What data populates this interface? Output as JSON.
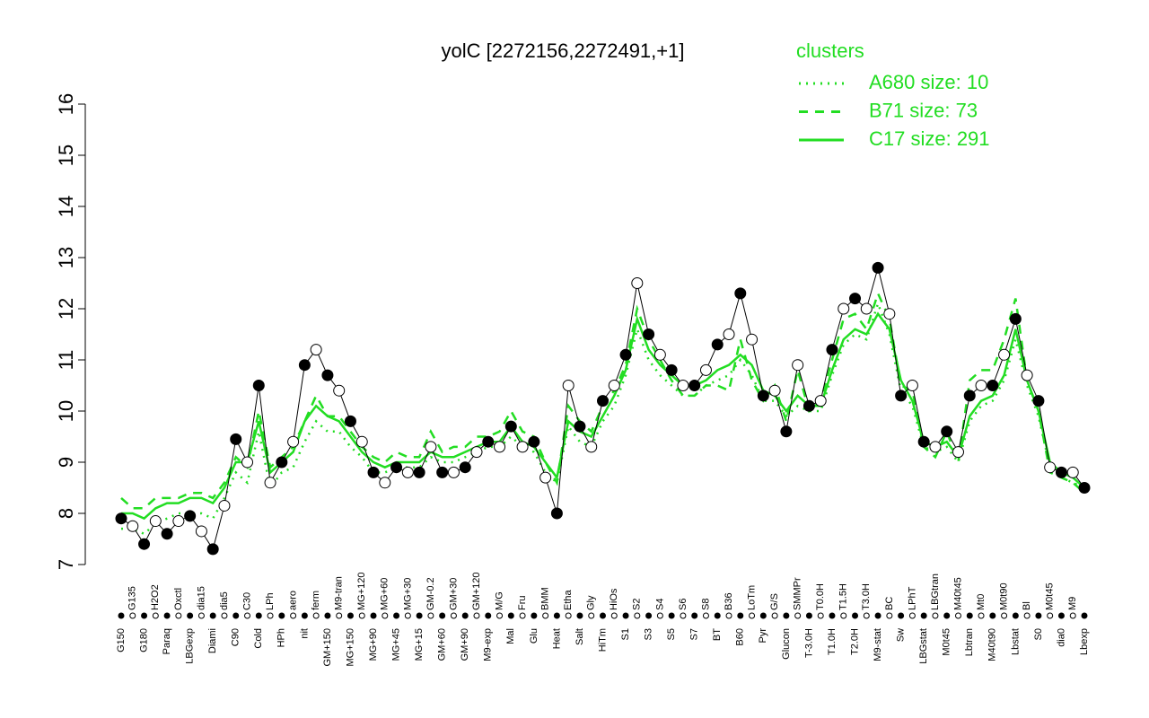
{
  "chart_data": {
    "type": "line",
    "title": "yolC [2272156,2272491,+1]",
    "legend_title": "clusters",
    "categories": [
      "G150",
      "G135",
      "G180",
      "H2O2",
      "Paraq",
      "Oxctl",
      "LBGexp",
      "dia15",
      "Diami",
      "dia5",
      "C90",
      "C30",
      "Cold",
      "LPh",
      "HPh",
      "aero",
      "nit",
      "ferm",
      "GM+150",
      "M9-tran",
      "MG+150",
      "MG+120",
      "MG+90",
      "MG+60",
      "MG+45",
      "MG+30",
      "MG+15",
      "GM-0.2",
      "GM+60",
      "GM+30",
      "GM+90",
      "GM+120",
      "M9-exp",
      "M/G",
      "Mal",
      "Fru",
      "Glu",
      "BMM",
      "Heat",
      "Etha",
      "Salt",
      "Gly",
      "HiTm",
      "HiOs",
      "S1",
      "S2",
      "S3",
      "S4",
      "S5",
      "S6",
      "S7",
      "S8",
      "BT",
      "B36",
      "B60",
      "LoTm",
      "Pyr",
      "G/S",
      "Glucon",
      "SMMPr",
      "T-3.0H",
      "T0.0H",
      "T1.0H",
      "T1.5H",
      "T2.0H",
      "T3.0H",
      "M9-stat",
      "BC",
      "Sw",
      "LPhT",
      "LBGstat",
      "LBGtran",
      "M0t45",
      "M40t45",
      "Lbtran",
      "Mt0",
      "M40t90",
      "M0t90",
      "Lbstat",
      "Bl",
      "S0",
      "M0t45",
      "dia0",
      "M9",
      "Lbexp"
    ],
    "series": [
      {
        "name": "main",
        "color": "#000000",
        "values": [
          7.9,
          7.75,
          7.4,
          7.85,
          7.6,
          7.85,
          7.95,
          7.65,
          7.3,
          8.15,
          9.45,
          9.0,
          10.5,
          8.6,
          9.0,
          9.4,
          10.9,
          11.2,
          10.7,
          10.4,
          9.8,
          9.4,
          8.8,
          8.6,
          8.9,
          8.8,
          8.8,
          9.3,
          8.8,
          8.8,
          8.9,
          9.2,
          9.4,
          9.3,
          9.7,
          9.3,
          9.4,
          8.7,
          8.0,
          10.5,
          9.7,
          9.3,
          10.2,
          10.5,
          11.1,
          12.5,
          11.5,
          11.1,
          10.8,
          10.5,
          10.5,
          10.8,
          11.3,
          11.5,
          12.3,
          11.4,
          10.3,
          10.4,
          9.6,
          10.9,
          10.1,
          10.2,
          11.2,
          12.0,
          12.2,
          12.0,
          12.8,
          11.9,
          10.3,
          10.5,
          9.4,
          9.3,
          9.6,
          9.2,
          10.3,
          10.5,
          10.5,
          11.1,
          11.8,
          10.7,
          10.2,
          8.9,
          8.8,
          8.8,
          8.5
        ]
      },
      {
        "name": "A680 size: 10",
        "color": "#22dd22",
        "dash": "dotted",
        "values": [
          7.7,
          7.7,
          7.6,
          7.8,
          7.9,
          8.0,
          8.0,
          8.0,
          7.9,
          8.3,
          8.8,
          8.6,
          9.6,
          8.5,
          8.8,
          8.9,
          9.4,
          9.8,
          9.6,
          9.6,
          9.3,
          9.1,
          8.8,
          8.8,
          8.9,
          8.9,
          8.9,
          9.1,
          9.0,
          9.0,
          9.1,
          9.2,
          9.3,
          9.3,
          9.5,
          9.3,
          9.2,
          8.8,
          8.6,
          9.7,
          9.4,
          9.3,
          9.8,
          10.1,
          10.7,
          11.6,
          11.0,
          10.7,
          10.5,
          10.3,
          10.3,
          10.5,
          10.6,
          10.7,
          11.0,
          10.7,
          10.2,
          10.2,
          9.9,
          10.1,
          10.0,
          10.0,
          10.7,
          11.3,
          11.5,
          11.4,
          12.1,
          11.5,
          10.4,
          10.1,
          9.3,
          9.2,
          9.3,
          9.0,
          9.8,
          10.1,
          10.2,
          10.6,
          11.4,
          10.5,
          9.9,
          8.9,
          8.7,
          8.6,
          8.5
        ]
      },
      {
        "name": "B71 size: 73",
        "color": "#22dd22",
        "dash": "dashed",
        "values": [
          8.3,
          8.1,
          8.1,
          8.3,
          8.3,
          8.3,
          8.4,
          8.4,
          8.3,
          8.6,
          9.1,
          8.9,
          10.0,
          8.9,
          9.1,
          9.3,
          9.8,
          10.3,
          9.9,
          9.9,
          9.6,
          9.3,
          9.1,
          9.0,
          9.2,
          9.1,
          9.1,
          9.6,
          9.2,
          9.3,
          9.3,
          9.5,
          9.5,
          9.6,
          10.0,
          9.6,
          9.5,
          9.0,
          8.6,
          10.1,
          9.8,
          9.6,
          10.1,
          10.4,
          10.9,
          12.0,
          11.4,
          11.0,
          10.6,
          10.3,
          10.3,
          10.5,
          10.5,
          10.4,
          11.4,
          10.6,
          10.2,
          10.5,
          9.8,
          10.8,
          10.0,
          10.2,
          11.0,
          11.8,
          11.9,
          11.6,
          12.3,
          11.8,
          10.5,
          10.4,
          9.3,
          9.1,
          9.6,
          9.0,
          10.6,
          10.8,
          10.8,
          11.4,
          12.2,
          10.6,
          10.0,
          8.8,
          8.7,
          8.6,
          8.4
        ]
      },
      {
        "name": "C17 size: 291",
        "color": "#22dd22",
        "dash": "solid",
        "values": [
          8.0,
          8.0,
          7.9,
          8.1,
          8.2,
          8.2,
          8.3,
          8.3,
          8.2,
          8.5,
          9.0,
          9.0,
          9.8,
          8.8,
          9.0,
          9.2,
          9.8,
          10.1,
          9.9,
          9.8,
          9.5,
          9.2,
          9.0,
          8.9,
          9.0,
          9.0,
          9.0,
          9.2,
          9.1,
          9.1,
          9.2,
          9.3,
          9.4,
          9.4,
          9.7,
          9.4,
          9.3,
          9.0,
          8.7,
          9.8,
          9.6,
          9.5,
          9.9,
          10.3,
          10.8,
          11.8,
          11.2,
          10.9,
          10.7,
          10.5,
          10.5,
          10.6,
          10.8,
          10.9,
          11.1,
          10.9,
          10.4,
          10.3,
          10.0,
          10.3,
          10.1,
          10.1,
          10.8,
          11.4,
          11.6,
          11.5,
          11.9,
          11.6,
          10.6,
          10.2,
          9.4,
          9.3,
          9.4,
          9.1,
          9.9,
          10.2,
          10.3,
          10.7,
          11.6,
          10.6,
          10.0,
          9.0,
          8.8,
          8.7,
          8.5
        ]
      }
    ],
    "ylim": [
      7,
      16
    ],
    "yticks": [
      7,
      8,
      9,
      10,
      11,
      12,
      13,
      14,
      15,
      16
    ],
    "legend": "top-right"
  }
}
